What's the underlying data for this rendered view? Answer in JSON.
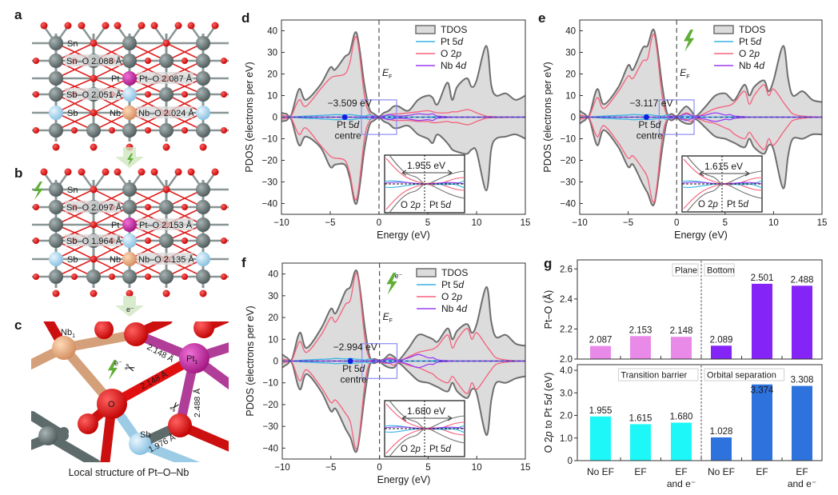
{
  "panel_a": {
    "label": "a",
    "atoms": {
      "sn": "Sn",
      "sb": "Sb",
      "pt": "Pt",
      "nb": "Nb"
    },
    "bonds": [
      "Sn–O 2.088 Å",
      "Pt–O 2.087 Å",
      "Sb–O 2.051 Å",
      "Nb–O 2.024 Å"
    ]
  },
  "panel_b": {
    "label": "b",
    "atoms": {
      "sn": "Sn",
      "sb": "Sb",
      "pt": "Pt",
      "nb": "Nb"
    },
    "bonds": [
      "Sn–O 2.097 Å",
      "Pt–O 2.153 Å",
      "Sb–O 1.964 Å",
      "Nb–O 2.135 Å"
    ]
  },
  "arrow_electron": "e⁻",
  "panel_c": {
    "label": "c",
    "atoms": {
      "nb": "Nb",
      "nb_sub": "1",
      "pt": "Pt",
      "pt_sub": "1",
      "o": "O",
      "sb": "Sb"
    },
    "electron": "e⁻",
    "bonds": [
      "2.148 Å",
      "2.148 Å",
      "2.488 Å",
      "1.976 Å"
    ],
    "caption": "Local structure of Pt–O–Nb"
  },
  "colors": {
    "tdos_fill": "#dcdcdc",
    "tdos_line": "#6e6e6e",
    "o2p": "#f5607c",
    "pt5d": "#39b4e6",
    "nb4d": "#9b3df2",
    "plane": "#e98ae9",
    "bottom": "#8424f7",
    "barrier": "#1ef7f7",
    "separation": "#2e72de",
    "green": "#5fae35"
  },
  "chart_data": [
    {
      "type": "area",
      "label": "d",
      "xlabel": "Energy (eV)",
      "ylabel": "PDOS (electrons per eV)",
      "xlim": [
        -10,
        15
      ],
      "ylim": [
        -45,
        45
      ],
      "xticks": [
        -10,
        -5,
        0,
        5,
        10,
        15
      ],
      "yticks": [
        -40,
        -30,
        -20,
        -10,
        0,
        10,
        20,
        30,
        40
      ],
      "ef_label": {
        "main": "E",
        "sub": "F"
      },
      "legend": [
        {
          "text": "TDOS",
          "italic": ""
        },
        {
          "text": "Pt 5",
          "italic": "d"
        },
        {
          "text": "O 2",
          "italic": "p"
        },
        {
          "text": "Nb 4",
          "italic": "d"
        }
      ],
      "legend_position": "top-right",
      "icon": "none",
      "d_band_centre": -3.509,
      "centre_value_label": "−3.509 eV",
      "centre_label": {
        "line1": "Pt 5",
        "italic": "d",
        "line2": "centre"
      },
      "inset": {
        "gap_label": "1.955 eV",
        "left": {
          "text": "O 2",
          "italic": "p"
        },
        "right": {
          "text": "Pt 5",
          "italic": "d"
        }
      },
      "x": [
        -10,
        -9.5,
        -9,
        -8.2,
        -7.5,
        -6,
        -5,
        -4.5,
        -3.5,
        -3,
        -2.3,
        -1.5,
        -1,
        -0.5,
        0,
        0.5,
        1,
        1.5,
        2,
        3,
        4,
        5,
        5.5,
        6,
        7,
        7.5,
        8,
        9,
        9.5,
        10,
        11,
        11.5,
        12,
        13,
        14,
        15
      ],
      "tdos_up": [
        2,
        1.5,
        1,
        13,
        8,
        15,
        23,
        22,
        28,
        30,
        39,
        15,
        4,
        1.5,
        0.3,
        2,
        3,
        5,
        5,
        3,
        8,
        10,
        9,
        6,
        16,
        8,
        14,
        18,
        14,
        17,
        33,
        15,
        10,
        11,
        8,
        10
      ],
      "tdos_down": [
        2,
        1.5,
        1,
        13,
        9,
        14,
        23,
        22,
        22,
        28,
        40,
        15,
        4,
        1.5,
        0.3,
        2,
        3,
        5,
        5,
        4,
        8,
        10,
        12,
        8,
        12,
        15,
        16,
        17,
        15,
        16,
        34,
        15,
        10,
        9,
        8,
        10
      ],
      "o2p_up": [
        1,
        0.5,
        0.5,
        8,
        5,
        13,
        18,
        19,
        20,
        25,
        37,
        10,
        2,
        0.5,
        0,
        0.5,
        1,
        1.5,
        1.5,
        2,
        2.5,
        3,
        2.5,
        2,
        2,
        2.5,
        2.5,
        3.5,
        3,
        2,
        0.5,
        0.3,
        0.2,
        0.1,
        0,
        0
      ],
      "o2p_down": [
        1,
        0.5,
        0.5,
        8,
        5,
        13,
        18,
        19,
        20,
        26,
        38,
        10,
        2,
        0.5,
        0,
        0.5,
        1,
        1.5,
        1.5,
        1.5,
        2,
        2,
        2.5,
        2.5,
        2,
        2.5,
        2.5,
        3.5,
        3,
        2,
        0.5,
        0.3,
        0.2,
        0.1,
        0,
        0
      ],
      "pt5d": [
        0,
        0,
        0,
        0.3,
        0.5,
        0.8,
        1,
        1.2,
        1,
        1.2,
        0.8,
        0.5,
        1,
        0.3,
        0,
        0.4,
        0.5,
        0.3,
        0,
        0,
        0,
        0,
        0.2,
        0,
        0,
        0,
        0,
        0,
        0,
        0,
        0,
        0,
        0,
        0,
        0,
        0
      ],
      "nb4d": [
        0,
        0,
        0,
        0,
        0,
        0,
        0,
        0,
        0,
        0,
        0,
        0,
        0,
        0.5,
        0.2,
        0.6,
        1.2,
        0.8,
        0.5,
        0.8,
        1.5,
        1.2,
        1.5,
        0.5,
        0.2,
        0,
        0,
        0,
        0,
        0,
        0,
        0,
        0,
        0,
        0,
        0
      ]
    },
    {
      "type": "area",
      "label": "e",
      "xlabel": "Energy (eV)",
      "ylabel": "PDOS (electrons per eV)",
      "xlim": [
        -10,
        15
      ],
      "ylim": [
        -45,
        45
      ],
      "xticks": [
        -10,
        -5,
        0,
        5,
        10,
        15
      ],
      "yticks": [
        -40,
        -30,
        -20,
        -10,
        0,
        10,
        20,
        30,
        40
      ],
      "ef_label": {
        "main": "E",
        "sub": "F"
      },
      "legend": [
        {
          "text": "TDOS",
          "italic": ""
        },
        {
          "text": "Pt 5",
          "italic": "d"
        },
        {
          "text": "O 2",
          "italic": "p"
        },
        {
          "text": "Nb 4",
          "italic": "d"
        }
      ],
      "legend_position": "top-right",
      "icon": "lightning",
      "d_band_centre": -3.117,
      "centre_value_label": "−3.117 eV",
      "centre_label": {
        "line1": "Pt 5",
        "italic": "d",
        "line2": "centre"
      },
      "inset": {
        "gap_label": "1.615 eV",
        "left": {
          "text": "O 2",
          "italic": "p"
        },
        "right": {
          "text": "Pt 5",
          "italic": "d"
        }
      },
      "x": [
        -10,
        -9.5,
        -9,
        -8.2,
        -7.5,
        -6,
        -5,
        -4.5,
        -3.5,
        -3,
        -2.3,
        -1.5,
        -1,
        -0.5,
        0,
        0.5,
        1,
        1.5,
        2,
        3,
        4,
        5,
        5.5,
        6,
        7,
        7.5,
        8,
        9,
        9.5,
        10,
        11,
        11.5,
        12,
        13,
        14,
        15
      ],
      "tdos_up": [
        3,
        1.5,
        1,
        13,
        6,
        14,
        24,
        22,
        32,
        33,
        40,
        15,
        2,
        1.5,
        0.5,
        3,
        5,
        3,
        0.5,
        5,
        10,
        11,
        9,
        8,
        15,
        10,
        14,
        17,
        12,
        17,
        33,
        18,
        10,
        12,
        8,
        7
      ],
      "tdos_down": [
        3,
        1.5,
        1,
        13,
        6,
        14,
        23,
        22,
        31,
        35,
        40,
        15,
        2,
        1.5,
        0.5,
        2,
        3,
        3,
        1,
        5,
        9,
        10,
        11,
        12,
        14,
        10,
        14,
        17,
        13,
        15,
        33,
        18,
        10,
        10,
        8,
        8
      ],
      "o2p_up": [
        1,
        0.5,
        0.5,
        9,
        4,
        12,
        19,
        18,
        26,
        27,
        38,
        10,
        1,
        0.5,
        0,
        1,
        2,
        1,
        0,
        2,
        4,
        5,
        5.5,
        7,
        12,
        6,
        10,
        15,
        10,
        13,
        7,
        4,
        1.5,
        0.5,
        0.2,
        0.1
      ],
      "o2p_down": [
        1,
        0.5,
        0.5,
        9,
        4,
        12,
        19,
        18,
        24,
        28,
        39,
        10,
        1,
        0.5,
        0,
        1,
        1,
        2,
        0.5,
        2,
        3,
        5,
        6,
        8,
        10,
        7,
        10,
        15,
        10,
        13,
        7,
        4,
        1.5,
        0.5,
        0.2,
        0.1
      ],
      "pt5d": [
        0,
        0,
        0,
        0.3,
        0.5,
        0.8,
        1,
        1.2,
        1,
        1.2,
        0.8,
        0.5,
        1,
        0.3,
        0,
        0.4,
        0.5,
        0.3,
        0,
        0,
        0,
        0,
        0.2,
        0,
        0,
        0,
        0,
        0,
        0,
        0,
        0,
        0,
        0,
        0,
        0,
        0
      ],
      "nb4d": [
        0,
        0,
        0,
        0,
        0,
        0,
        0,
        0,
        0,
        0,
        0,
        0,
        0,
        0.5,
        0.2,
        0.8,
        1.5,
        0.8,
        0.3,
        1,
        2,
        1,
        1.2,
        0.5,
        0.2,
        0,
        0,
        0,
        0,
        0,
        0,
        0,
        0,
        0,
        0,
        0
      ]
    },
    {
      "type": "area",
      "label": "f",
      "xlabel": "Energy (eV)",
      "ylabel": "PDOS (electrons per eV)",
      "xlim": [
        -10,
        15
      ],
      "ylim": [
        -45,
        45
      ],
      "xticks": [
        -10,
        -5,
        0,
        5,
        10,
        15
      ],
      "yticks": [
        -40,
        -30,
        -20,
        -10,
        0,
        10,
        20,
        30,
        40
      ],
      "ef_label": {
        "main": "E",
        "sub": "F"
      },
      "legend": [
        {
          "text": "TDOS",
          "italic": ""
        },
        {
          "text": "Pt 5",
          "italic": "d"
        },
        {
          "text": "O 2",
          "italic": "p"
        },
        {
          "text": "Nb 4",
          "italic": "d"
        }
      ],
      "legend_position": "top-right",
      "icon": "lightning-electron",
      "icon_text": "e⁻",
      "d_band_centre": -2.994,
      "centre_value_label": "−2.994 eV",
      "centre_label": {
        "line1": "Pt 5",
        "italic": "d",
        "line2": "centre"
      },
      "inset": {
        "gap_label": "1.680 eV",
        "left": {
          "text": "O 2",
          "italic": "p"
        },
        "right": {
          "text": "Pt 5",
          "italic": "d"
        }
      },
      "x": [
        -10,
        -9.5,
        -9,
        -8.2,
        -7.5,
        -6,
        -5,
        -4.5,
        -3.5,
        -3,
        -2.3,
        -1.5,
        -1,
        -0.5,
        0,
        0.5,
        1,
        1.5,
        2,
        3,
        4,
        5,
        5.5,
        6,
        7,
        7.5,
        8,
        9,
        9.5,
        10,
        11,
        11.5,
        12,
        13,
        14,
        15
      ],
      "tdos_up": [
        3,
        1.5,
        1,
        13,
        6,
        15,
        24,
        22,
        32,
        34,
        41,
        15,
        2,
        1,
        0.3,
        1,
        3,
        2,
        0.5,
        6,
        12,
        11,
        10,
        9,
        15,
        10,
        14,
        17,
        13,
        17,
        34,
        18,
        11,
        12,
        8,
        7
      ],
      "tdos_down": [
        3,
        1.5,
        1,
        13,
        6,
        14,
        23,
        22,
        31,
        35,
        41,
        15,
        2,
        1,
        0.3,
        2,
        3,
        3,
        1,
        5,
        9,
        10,
        11,
        12,
        14,
        10,
        14,
        17,
        13,
        15,
        34,
        18,
        10,
        10,
        8,
        7
      ],
      "o2p_up": [
        1,
        0.5,
        0.5,
        9,
        4,
        12,
        20,
        18,
        26,
        28,
        40,
        10,
        1,
        0.5,
        0,
        0.5,
        1.5,
        1,
        0,
        2,
        4,
        5,
        5.5,
        7,
        12,
        6,
        10,
        15,
        10,
        13,
        7,
        4,
        1.5,
        0.5,
        0.2,
        0.1
      ],
      "o2p_down": [
        1,
        0.5,
        0.5,
        9,
        4,
        12,
        19,
        18,
        24,
        28,
        40,
        10,
        1,
        0.5,
        0,
        1,
        1,
        2,
        0.5,
        2,
        3,
        5,
        6,
        8,
        10,
        7,
        10,
        15,
        10,
        13,
        7,
        4,
        1.5,
        0.5,
        0.2,
        0.1
      ],
      "pt5d": [
        0,
        0,
        0,
        0.3,
        0.5,
        0.8,
        1,
        1.2,
        1,
        1.2,
        0.8,
        0.5,
        1,
        0.3,
        0,
        0.4,
        0.5,
        0.3,
        0,
        0,
        0,
        0,
        0.2,
        0,
        0,
        0,
        0,
        0,
        0,
        0,
        0,
        0,
        0,
        0,
        0,
        0
      ],
      "nb4d": [
        0,
        0,
        0,
        0,
        0,
        0,
        0,
        0,
        0,
        0,
        0,
        0,
        0,
        0.5,
        0.2,
        0.6,
        1,
        0.6,
        0.3,
        1.5,
        3,
        1.5,
        1.5,
        0.5,
        0.2,
        0,
        0,
        0,
        0,
        0,
        0,
        0,
        0,
        0,
        0,
        0
      ]
    },
    {
      "type": "bar",
      "label": "g",
      "categories": [
        [
          "No EF",
          ""
        ],
        [
          "EF",
          ""
        ],
        [
          "EF",
          "and e⁻"
        ],
        [
          "No EF",
          ""
        ],
        [
          "EF",
          ""
        ],
        [
          "EF",
          "and e⁻"
        ]
      ],
      "top": {
        "ylabel": "Pt–O (Å)",
        "ylim": [
          2.0,
          2.66
        ],
        "yticks": [
          "2.0",
          "2.2",
          "2.4",
          "2.6"
        ],
        "values": [
          2.087,
          2.153,
          2.148,
          2.089,
          2.501,
          2.488
        ],
        "value_labels": [
          "2.087",
          "2.153",
          "2.148",
          "2.089",
          "2.501",
          "2.488"
        ],
        "groups": [
          {
            "name": "Plane",
            "color_key": "plane"
          },
          {
            "name": "Bottom",
            "color_key": "bottom"
          }
        ]
      },
      "bottom": {
        "ylabel": {
          "text1": "O 2",
          "italic1": "p",
          "text2": " to Pt 5",
          "italic2": "d",
          "text3": " (eV)"
        },
        "ylim": [
          0,
          4.25
        ],
        "yticks": [
          "0",
          "1.0",
          "2.0",
          "3.0",
          "4.0"
        ],
        "values": [
          1.955,
          1.615,
          1.68,
          1.028,
          3.374,
          3.308
        ],
        "value_labels": [
          "1.955",
          "1.615",
          "1.680",
          "1.028",
          "3.374",
          "3.308"
        ],
        "groups": [
          {
            "name": "Transition barrier",
            "color_key": "barrier"
          },
          {
            "name": "Orbital separation",
            "color_key": "separation"
          }
        ]
      }
    }
  ]
}
